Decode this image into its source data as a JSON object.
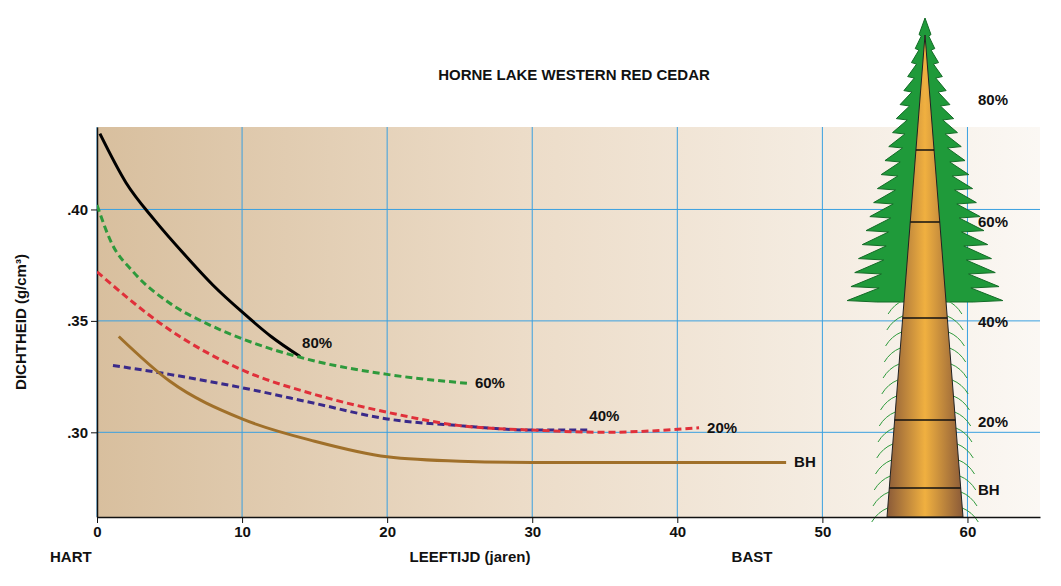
{
  "chart_data": {
    "type": "line",
    "title": "HORNE LAKE WESTERN RED CEDAR",
    "x_label": "LEEFTIJD (jaren)",
    "y_label": "DICHTHEID (g/cm³)",
    "annotations": [
      "HART",
      "BAST"
    ],
    "xlim": [
      0,
      65
    ],
    "ylim": [
      0.262,
      0.437
    ],
    "xticks": [
      0,
      10,
      20,
      30,
      40,
      50,
      60
    ],
    "yticks": [
      {
        "value": 0.3,
        "label": ".30"
      },
      {
        "value": 0.35,
        "label": ".35"
      },
      {
        "value": 0.4,
        "label": ".40"
      }
    ],
    "grid": true,
    "series": [
      {
        "name": "80%",
        "color": "#000000",
        "line_style": "solid",
        "x": [
          0.2,
          2,
          4,
          6,
          8,
          10,
          12,
          14
        ],
        "values": [
          0.434,
          0.412,
          0.395,
          0.38,
          0.366,
          0.354,
          0.343,
          0.334
        ]
      },
      {
        "name": "60%",
        "color": "#2e9a3c",
        "line_style": "dashed",
        "x": [
          0,
          1,
          2.5,
          5,
          7.5,
          10,
          15,
          20,
          25.5
        ],
        "values": [
          0.402,
          0.385,
          0.372,
          0.358,
          0.349,
          0.342,
          0.332,
          0.326,
          0.322
        ]
      },
      {
        "name": "40%",
        "color": "#3a2a8a",
        "line_style": "dashed",
        "x": [
          1.1,
          5,
          10,
          15,
          20,
          25,
          30,
          33.8
        ],
        "values": [
          0.33,
          0.326,
          0.32,
          0.313,
          0.306,
          0.303,
          0.301,
          0.301
        ]
      },
      {
        "name": "20%",
        "color": "#e0303a",
        "line_style": "dashed",
        "x": [
          0,
          5,
          10,
          15,
          20,
          25,
          30,
          35,
          41.5
        ],
        "values": [
          0.372,
          0.346,
          0.328,
          0.317,
          0.309,
          0.303,
          0.301,
          0.3,
          0.302
        ]
      },
      {
        "name": "BH",
        "color": "#a0702a",
        "line_style": "solid",
        "x": [
          1.5,
          5,
          10,
          15,
          20,
          25,
          30,
          40,
          47.5
        ],
        "values": [
          0.343,
          0.323,
          0.306,
          0.296,
          0.289,
          0.287,
          0.2865,
          0.2865,
          0.2865
        ]
      }
    ]
  }
}
